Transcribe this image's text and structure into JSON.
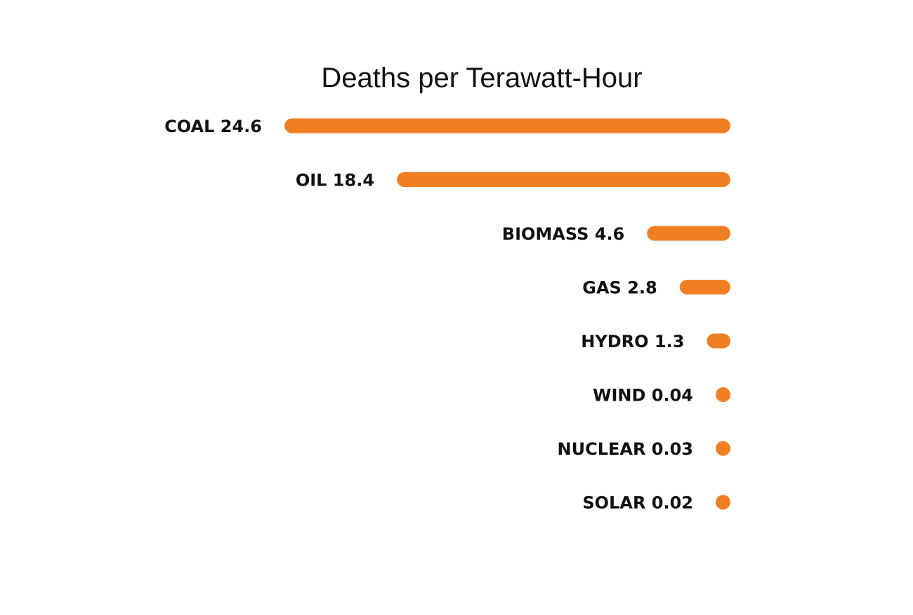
{
  "chart_data": {
    "type": "bar",
    "orientation": "horizontal",
    "title": "Deaths per Terawatt-Hour",
    "xlabel": "",
    "ylabel": "",
    "grid": false,
    "bar_color": "#f07f23",
    "categories": [
      "COAL",
      "OIL",
      "BIOMASS",
      "GAS",
      "HYDRO",
      "WIND",
      "NUCLEAR",
      "SOLAR"
    ],
    "values": [
      24.6,
      18.4,
      4.6,
      2.8,
      1.3,
      0.04,
      0.03,
      0.02
    ],
    "data_labels": [
      "COAL 24.6",
      "OIL 18.4",
      "BIOMASS 4.6",
      "GAS 2.8",
      "HYDRO 1.3",
      "WIND 0.04",
      "NUCLEAR 0.03",
      "SOLAR 0.02"
    ]
  }
}
